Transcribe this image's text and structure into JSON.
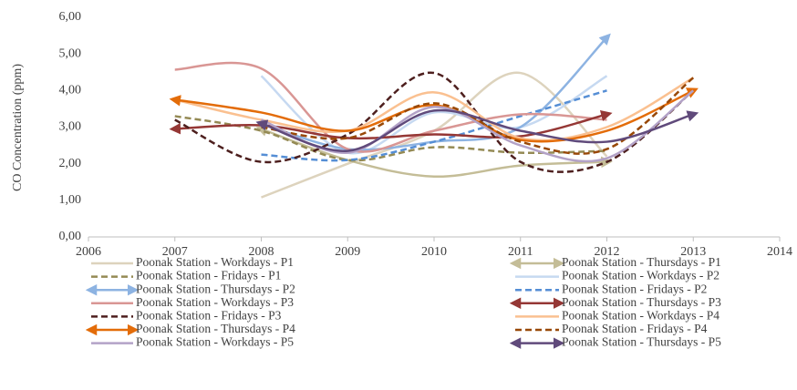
{
  "chart_data": {
    "type": "line",
    "y_label": "CO Concentration (ppm)",
    "x": [
      2007,
      2008,
      2009,
      2010,
      2011,
      2012,
      2013
    ],
    "xlim": [
      2006,
      2014
    ],
    "xticks": [
      2006,
      2007,
      2008,
      2009,
      2010,
      2011,
      2012,
      2013,
      2014
    ],
    "ylim": [
      0,
      6
    ],
    "yticks": [
      {
        "value": 0,
        "label": "0,00"
      },
      {
        "value": 1,
        "label": "1,00"
      },
      {
        "value": 2,
        "label": "2,00"
      },
      {
        "value": 3,
        "label": "3,00"
      },
      {
        "value": 4,
        "label": "4,00"
      },
      {
        "value": 5,
        "label": "5,00"
      },
      {
        "value": 6,
        "label": "6,00"
      }
    ],
    "grid": false,
    "smooth": true,
    "series": [
      {
        "name": "Poonak Station - Workdays - P1",
        "color": "#ddd3bd",
        "style": "solid",
        "values": [
          null,
          1.08,
          2.0,
          2.9,
          4.48,
          2.2,
          null
        ]
      },
      {
        "name": "Poonak Station - Thursdays - P1",
        "color": "#c4bd97",
        "style": "arrow",
        "values": [
          null,
          2.95,
          2.1,
          1.65,
          1.95,
          2.05,
          null
        ]
      },
      {
        "name": "Poonak Station - Fridays - P1",
        "color": "#948a54",
        "style": "dashed",
        "values": [
          3.3,
          2.9,
          2.1,
          2.45,
          2.3,
          2.35,
          null
        ]
      },
      {
        "name": "Poonak Station - Workdays - P2",
        "color": "#c6d9f1",
        "style": "solid",
        "values": [
          null,
          4.4,
          2.3,
          3.4,
          3.0,
          4.4,
          null
        ]
      },
      {
        "name": "Poonak Station - Thursdays - P2",
        "color": "#8db3e2",
        "style": "arrow",
        "values": [
          null,
          3.1,
          2.4,
          2.6,
          3.0,
          5.45,
          null
        ]
      },
      {
        "name": "Poonak Station - Fridays - P2",
        "color": "#558ed5",
        "style": "dashed",
        "values": [
          null,
          2.25,
          2.1,
          2.6,
          3.3,
          4.0,
          null
        ]
      },
      {
        "name": "Poonak Station - Workdays - P3",
        "color": "#d99694",
        "style": "solid",
        "values": [
          4.57,
          4.6,
          2.4,
          2.9,
          3.35,
          3.2,
          null
        ]
      },
      {
        "name": "Poonak Station - Thursdays - P3",
        "color": "#953735",
        "style": "arrow",
        "values": [
          2.95,
          3.05,
          2.7,
          2.8,
          2.75,
          3.35,
          null
        ]
      },
      {
        "name": "Poonak Station - Fridays - P3",
        "color": "#4d1f1e",
        "style": "dashed",
        "values": [
          3.2,
          2.05,
          2.8,
          4.48,
          2.05,
          2.05,
          4.0
        ]
      },
      {
        "name": "Poonak Station - Workdays - P4",
        "color": "#fac090",
        "style": "solid",
        "values": [
          3.75,
          3.2,
          2.9,
          3.95,
          2.7,
          3.0,
          4.35
        ]
      },
      {
        "name": "Poonak Station - Thursdays - P4",
        "color": "#e36c09",
        "style": "arrow",
        "values": [
          3.75,
          3.4,
          2.9,
          3.6,
          2.65,
          2.9,
          4.0
        ]
      },
      {
        "name": "Poonak Station - Fridays - P4",
        "color": "#984807",
        "style": "dashed",
        "values": [
          null,
          3.0,
          2.7,
          3.65,
          2.6,
          2.4,
          4.35
        ]
      },
      {
        "name": "Poonak Station - Workdays - P5",
        "color": "#b3a2c7",
        "style": "solid",
        "values": [
          null,
          3.2,
          2.3,
          3.55,
          2.5,
          2.15,
          4.0
        ]
      },
      {
        "name": "Poonak Station - Thursdays - P5",
        "color": "#604a7b",
        "style": "arrow",
        "values": [
          null,
          3.1,
          2.35,
          3.45,
          2.9,
          2.6,
          3.35
        ]
      }
    ]
  }
}
